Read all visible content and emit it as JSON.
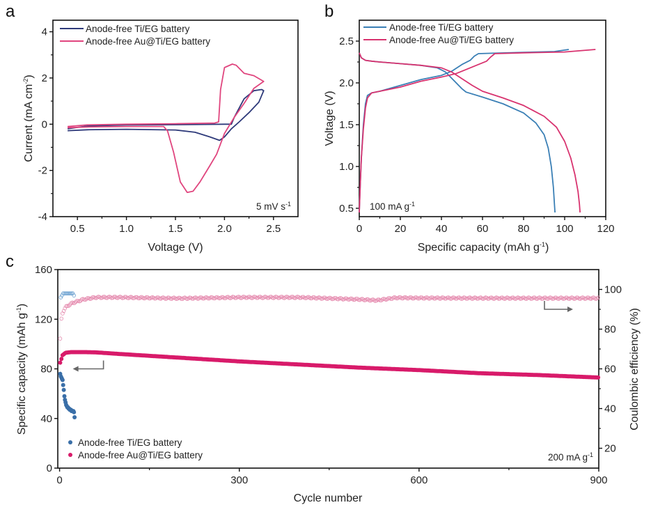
{
  "chart_data": [
    {
      "panel": "a",
      "type": "line",
      "title": "",
      "xlabel": "Voltage (V)",
      "ylabel": "Current (mA cm-2)",
      "xlim": [
        0.25,
        2.75
      ],
      "ylim": [
        -4,
        4.5
      ],
      "xticks": [
        0.5,
        1.0,
        1.5,
        2.0,
        2.5
      ],
      "xtick_labels": [
        "0.5",
        "1.0",
        "1.5",
        "2.0",
        "2.5"
      ],
      "yticks": [
        -4,
        -2,
        0,
        2,
        4
      ],
      "ytick_labels": [
        "-4",
        "-2",
        "0",
        "2",
        "4"
      ],
      "legend_position": "top-left",
      "annotation": "5 mV s-1",
      "series": [
        {
          "name": "Anode-free Ti/EG battery",
          "color": "#2e3a7a",
          "x": [
            0.4,
            0.6,
            1.0,
            1.5,
            1.8,
            2.0,
            2.07,
            2.1,
            2.2,
            2.3,
            2.38,
            2.4,
            2.35,
            2.25,
            2.15,
            2.07,
            2.0,
            1.95,
            1.85,
            1.7,
            1.5,
            1.0,
            0.6,
            0.4
          ],
          "y": [
            -0.2,
            -0.08,
            -0.03,
            -0.02,
            -0.01,
            0.0,
            0.0,
            0.3,
            1.1,
            1.45,
            1.5,
            1.45,
            0.95,
            0.5,
            0.1,
            -0.2,
            -0.55,
            -0.7,
            -0.55,
            -0.35,
            -0.25,
            -0.22,
            -0.24,
            -0.28
          ]
        },
        {
          "name": "Anode-free Au@Ti/EG battery",
          "color": "#e0457e",
          "x": [
            0.4,
            0.6,
            1.0,
            1.5,
            1.9,
            1.94,
            1.96,
            2.0,
            2.08,
            2.12,
            2.2,
            2.3,
            2.4,
            2.3,
            2.2,
            2.1,
            2.0,
            1.92,
            1.85,
            1.75,
            1.68,
            1.62,
            1.55,
            1.48,
            1.42,
            1.38,
            1.3,
            1.0,
            0.6,
            0.4
          ],
          "y": [
            -0.1,
            -0.03,
            0.0,
            0.02,
            0.05,
            0.1,
            1.5,
            2.45,
            2.6,
            2.55,
            2.2,
            2.1,
            1.85,
            1.55,
            0.9,
            0.3,
            -0.4,
            -1.3,
            -1.8,
            -2.5,
            -2.9,
            -2.95,
            -2.5,
            -1.2,
            -0.3,
            -0.1,
            -0.1,
            -0.1,
            -0.12,
            -0.15
          ]
        }
      ]
    },
    {
      "panel": "b",
      "type": "line",
      "title": "",
      "xlabel": "Specific capacity (mAh g-1)",
      "ylabel": "Voltage (V)",
      "xlim": [
        0,
        120
      ],
      "ylim": [
        0.4,
        2.75
      ],
      "xticks": [
        0,
        20,
        40,
        60,
        80,
        100,
        120
      ],
      "xtick_labels": [
        "0",
        "20",
        "40",
        "60",
        "80",
        "100",
        "120"
      ],
      "yticks": [
        0.5,
        1.0,
        1.5,
        2.0,
        2.5
      ],
      "ytick_labels": [
        "0.5",
        "1.0",
        "1.5",
        "2.0",
        "2.5"
      ],
      "legend_position": "top-left",
      "annotation": "100 mA g-1",
      "series": [
        {
          "name": "Anode-free Ti/EG battery (charge)",
          "legend_label": "Anode-free Ti/EG battery",
          "color": "#3a7fb5",
          "x": [
            0,
            0.5,
            1,
            2,
            3,
            4,
            6,
            10,
            20,
            30,
            40,
            45,
            50,
            54,
            56,
            58,
            65,
            80,
            95,
            102
          ],
          "y": [
            0.45,
            0.8,
            1.1,
            1.5,
            1.75,
            1.85,
            1.88,
            1.9,
            1.97,
            2.04,
            2.09,
            2.14,
            2.22,
            2.27,
            2.32,
            2.35,
            2.355,
            2.365,
            2.375,
            2.4
          ]
        },
        {
          "name": "Anode-free Ti/EG battery (discharge)",
          "color": "#3a7fb5",
          "x": [
            0,
            1,
            3,
            6,
            10,
            20,
            30,
            38,
            42,
            46,
            50,
            52,
            60,
            70,
            80,
            86,
            90,
            92,
            93.5,
            94.5,
            95,
            95.3
          ],
          "y": [
            2.36,
            2.3,
            2.27,
            2.26,
            2.25,
            2.23,
            2.21,
            2.18,
            2.13,
            2.03,
            1.93,
            1.89,
            1.83,
            1.75,
            1.64,
            1.52,
            1.38,
            1.22,
            1.0,
            0.75,
            0.55,
            0.45
          ]
        },
        {
          "name": "Anode-free Au@Ti/EG battery (charge)",
          "legend_label": "Anode-free Au@Ti/EG battery",
          "color": "#d8336f",
          "x": [
            0,
            0.5,
            1,
            2,
            3,
            4,
            6,
            10,
            20,
            30,
            40,
            47,
            52,
            57,
            62,
            64,
            66,
            80,
            100,
            115
          ],
          "y": [
            0.45,
            0.8,
            1.1,
            1.45,
            1.7,
            1.82,
            1.88,
            1.9,
            1.95,
            2.02,
            2.07,
            2.11,
            2.16,
            2.21,
            2.26,
            2.31,
            2.35,
            2.36,
            2.37,
            2.4
          ]
        },
        {
          "name": "Anode-free Au@Ti/EG battery (discharge)",
          "color": "#d8336f",
          "x": [
            0,
            1,
            3,
            6,
            10,
            20,
            30,
            40,
            45,
            50,
            55,
            60,
            70,
            80,
            90,
            96,
            100,
            103,
            105,
            106.5,
            107.2,
            107.5
          ],
          "y": [
            2.36,
            2.3,
            2.27,
            2.26,
            2.25,
            2.23,
            2.21,
            2.18,
            2.13,
            2.05,
            1.97,
            1.9,
            1.82,
            1.73,
            1.6,
            1.47,
            1.3,
            1.1,
            0.9,
            0.7,
            0.55,
            0.45
          ]
        }
      ]
    },
    {
      "panel": "c",
      "type": "scatter",
      "title": "",
      "xlabel": "Cycle number",
      "ylabel": "Specific capacity (mAh g-1)",
      "y2label": "Coulombic efficiency (%)",
      "xlim": [
        -3,
        900
      ],
      "ylim": [
        0,
        160
      ],
      "y2lim": [
        10,
        110
      ],
      "xticks": [
        0,
        300,
        600,
        900
      ],
      "xtick_labels": [
        "0",
        "300",
        "600",
        "900"
      ],
      "yticks": [
        0,
        40,
        80,
        120,
        160
      ],
      "ytick_labels": [
        "0",
        "40",
        "80",
        "120",
        "160"
      ],
      "y2ticks": [
        20,
        40,
        60,
        80,
        100
      ],
      "y2tick_labels": [
        "20",
        "40",
        "60",
        "80",
        "100"
      ],
      "legend_position": "bottom-left",
      "annotation": "200 mA g-1",
      "arrows": [
        {
          "points_to": "left-axis",
          "near_cycle": 50,
          "near_capacity": 80
        },
        {
          "points_to": "right-axis",
          "near_cycle": 850,
          "near_efficiency": 90
        }
      ],
      "series": [
        {
          "name": "Anode-free Ti/EG battery",
          "metric": "capacity",
          "color": "#3a6fa8",
          "marker": "filled-circle",
          "x": [
            1,
            2,
            3,
            4,
            5,
            6,
            7,
            8,
            9,
            10,
            11,
            12,
            13,
            14,
            15,
            16,
            17,
            18,
            19,
            20,
            21,
            22,
            23,
            24,
            25
          ],
          "y": [
            76,
            74,
            73,
            72,
            71,
            67,
            63,
            58,
            55,
            53,
            51,
            50,
            49,
            49,
            48,
            48,
            47,
            47,
            47,
            46,
            46,
            46,
            46,
            45,
            41
          ]
        },
        {
          "name": "Anode-free Ti/EG battery (CE)",
          "metric": "coulombic_efficiency",
          "color": "#6aa0d0",
          "marker": "open-circle",
          "x": [
            2,
            4,
            6,
            8,
            10,
            12,
            14,
            16,
            18,
            20,
            22,
            24
          ],
          "y": [
            96,
            97,
            98,
            98,
            98,
            98,
            98,
            98,
            98,
            98,
            98,
            97
          ]
        },
        {
          "name": "Anode-free Au@Ti/EG battery",
          "metric": "capacity",
          "color": "#d81b6a",
          "marker": "filled-circle",
          "x": [
            1,
            3,
            5,
            10,
            20,
            40,
            60,
            100,
            150,
            200,
            300,
            400,
            500,
            550,
            600,
            700,
            800,
            900
          ],
          "y": [
            85,
            88,
            91,
            93,
            93.5,
            93.5,
            93.3,
            92,
            90.5,
            89,
            86,
            83.5,
            81,
            80,
            79,
            76.5,
            75,
            73
          ]
        },
        {
          "name": "Anode-free Au@Ti/EG battery (CE)",
          "metric": "coulombic_efficiency",
          "color": "#e58aae",
          "marker": "open-circle",
          "x": [
            1,
            2,
            3,
            4,
            6,
            8,
            10,
            15,
            20,
            30,
            40,
            50,
            60,
            80,
            100,
            200,
            300,
            400,
            500,
            530,
            560,
            600,
            700,
            800,
            900
          ],
          "y": [
            75,
            80,
            85,
            87,
            89,
            90,
            91,
            92,
            93,
            94,
            95,
            95.5,
            96,
            96,
            96,
            95.5,
            96,
            96,
            95,
            94.5,
            95.8,
            95.7,
            95.6,
            95.6,
            95.6
          ]
        }
      ]
    }
  ],
  "panels": {
    "a": {
      "label": "a",
      "xlabel": "Voltage (V)",
      "ylabel_main": "Current (mA cm",
      "ylabel_sup": "-2",
      "ylabel_end": ")",
      "legend": [
        "Anode-free Ti/EG battery",
        "Anode-free Au@Ti/EG battery"
      ],
      "annotation_main": "5 mV s",
      "annotation_sup": "-1"
    },
    "b": {
      "label": "b",
      "xlabel_main": "Specific capacity (mAh g",
      "xlabel_sup": "-1",
      "xlabel_end": ")",
      "ylabel": "Voltage (V)",
      "legend": [
        "Anode-free Ti/EG battery",
        "Anode-free Au@Ti/EG battery"
      ],
      "annotation_main": "100 mA g",
      "annotation_sup": "-1"
    },
    "c": {
      "label": "c",
      "xlabel": "Cycle number",
      "ylabel_main": "Specific capacity (mAh g",
      "ylabel_sup": "-1",
      "ylabel_end": ")",
      "y2label": "Coulombic efficiency (%)",
      "legend": [
        "Anode-free Ti/EG battery",
        "Anode-free Au@Ti/EG battery"
      ],
      "annotation_main": "200 mA g",
      "annotation_sup": "-1"
    }
  }
}
